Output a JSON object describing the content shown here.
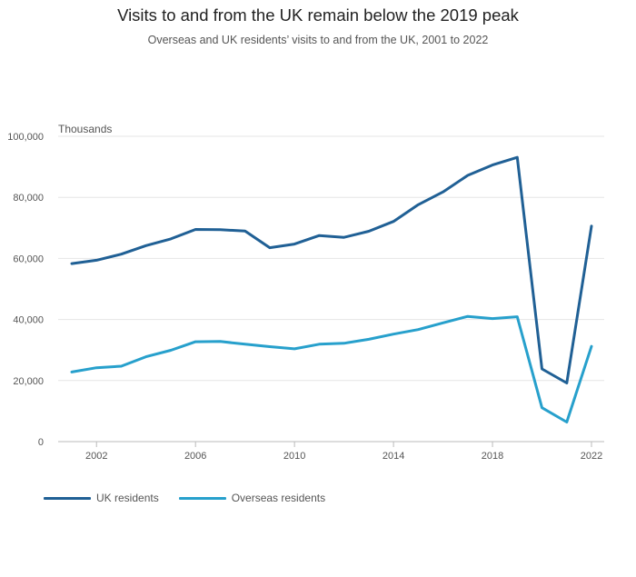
{
  "title": "Visits to and from the UK remain below the 2019 peak",
  "subtitle": "Overseas and UK residents’ visits to and from the UK, 2001 to 2022",
  "colors": {
    "uk": "#206095",
    "overseas": "#27a0cc",
    "grid": "#e6e6e6",
    "axis": "#bbbbbb"
  },
  "chart_data": {
    "type": "line",
    "ylabel": "Thousands",
    "xlim": [
      2001,
      2022
    ],
    "ylim": [
      0,
      100000
    ],
    "x_ticks": [
      2002,
      2006,
      2010,
      2014,
      2018,
      2022
    ],
    "y_ticks": [
      0,
      20000,
      40000,
      60000,
      80000,
      100000
    ],
    "y_tick_labels": [
      "0",
      "20,000",
      "40,000",
      "60,000",
      "80,000",
      "100,000"
    ],
    "grid": true,
    "legend_position": "bottom-left",
    "x": [
      2001,
      2002,
      2003,
      2004,
      2005,
      2006,
      2007,
      2008,
      2009,
      2010,
      2011,
      2012,
      2013,
      2014,
      2015,
      2016,
      2017,
      2018,
      2019,
      2020,
      2021,
      2022
    ],
    "series": [
      {
        "name": "UK residents",
        "values": [
          58300,
          59400,
          61400,
          64200,
          66400,
          69500,
          69400,
          69000,
          63500,
          64700,
          67500,
          66900,
          68900,
          72100,
          77600,
          81800,
          87200,
          90600,
          93100,
          23800,
          19200,
          70600
        ]
      },
      {
        "name": "Overseas residents",
        "values": [
          22800,
          24200,
          24700,
          27800,
          29900,
          32700,
          32800,
          31900,
          31100,
          30400,
          31900,
          32200,
          33500,
          35200,
          36700,
          38900,
          41000,
          40300,
          40900,
          11100,
          6400,
          31200
        ]
      }
    ]
  }
}
